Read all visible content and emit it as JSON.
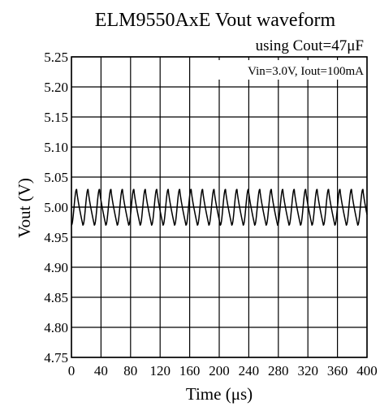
{
  "chart_data": {
    "type": "line",
    "title": "ELM9550AxE Vout waveform",
    "subtitle": "using Cout=47μF",
    "xlabel": "Time (μs)",
    "ylabel": "Vout (V)",
    "annotation": "Vin=3.0V, Iout=100mA",
    "xlim": [
      0,
      400
    ],
    "ylim": [
      4.75,
      5.25
    ],
    "x_ticks": [
      "0",
      "40",
      "80",
      "120",
      "160",
      "200",
      "240",
      "280",
      "320",
      "360",
      "400"
    ],
    "y_ticks": [
      "4.75",
      "4.80",
      "4.85",
      "4.90",
      "4.95",
      "5.00",
      "5.05",
      "5.10",
      "5.15",
      "5.20",
      "5.25"
    ],
    "grid": true,
    "series": [
      {
        "color": "#000000",
        "ripple_period_us": 15.5,
        "ripple_max": 5.03,
        "ripple_min": 4.97,
        "ripple_mean": 5.0
      }
    ]
  }
}
